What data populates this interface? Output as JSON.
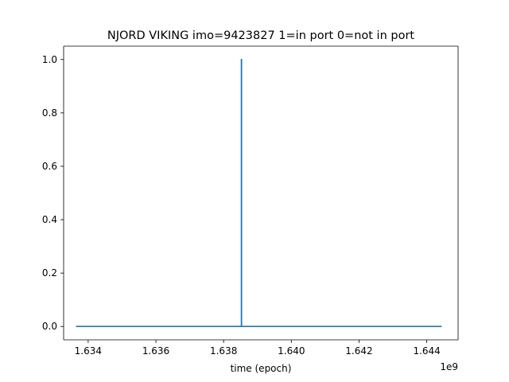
{
  "chart_data": {
    "type": "line",
    "title": "NJORD VIKING imo=9423827 1=in port 0=not in port",
    "xlabel": "time (epoch)",
    "ylabel": "",
    "x_offset_label": "1e9",
    "xlim": [
      1633275000,
      1644925000
    ],
    "ylim": [
      -0.05,
      1.05
    ],
    "x_ticks": [
      1634000000,
      1636000000,
      1638000000,
      1640000000,
      1642000000,
      1644000000
    ],
    "x_tick_labels": [
      "1.634",
      "1.636",
      "1.638",
      "1.640",
      "1.642",
      "1.644"
    ],
    "y_ticks": [
      0.0,
      0.2,
      0.4,
      0.6,
      0.8,
      1.0
    ],
    "y_tick_labels": [
      "0.0",
      "0.2",
      "0.4",
      "0.6",
      "0.8",
      "1.0"
    ],
    "grid": false,
    "series": [
      {
        "color": "#1f77b4",
        "x": [
          1633640000,
          1638525000,
          1638525000,
          1638530000,
          1638530000,
          1644440000
        ],
        "y": [
          0,
          0,
          1,
          1,
          0,
          0
        ]
      }
    ]
  }
}
